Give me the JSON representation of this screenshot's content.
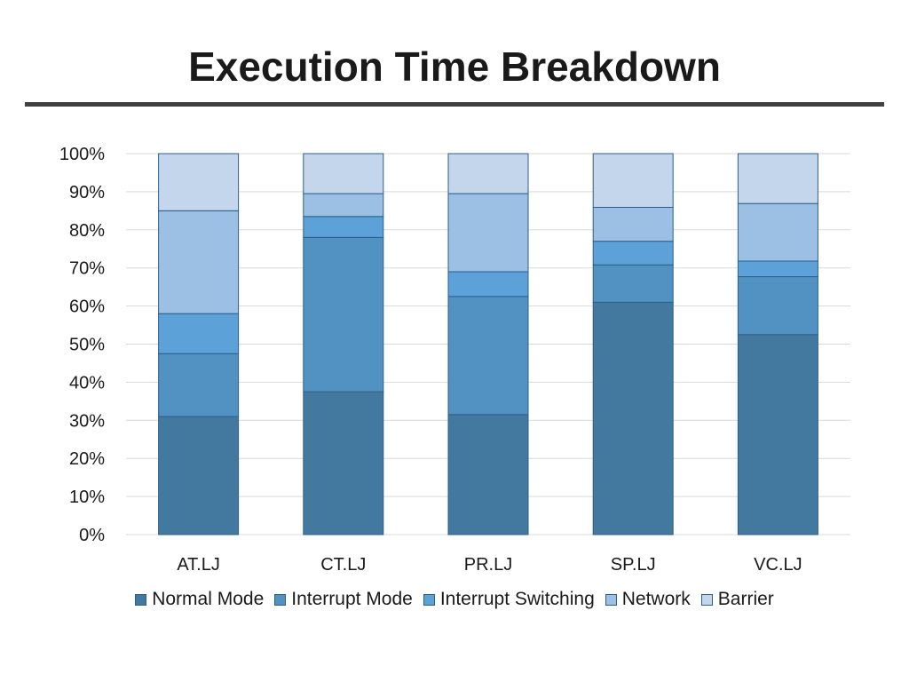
{
  "slide": {
    "title": "Execution Time Breakdown"
  },
  "chart_data": {
    "type": "bar",
    "stacked": true,
    "percent": true,
    "categories": [
      "AT.LJ",
      "CT.LJ",
      "PR.LJ",
      "SP.LJ",
      "VC.LJ"
    ],
    "series": [
      {
        "name": "Normal Mode",
        "color": "#44799f",
        "values": [
          31,
          37.5,
          31.5,
          61,
          52.5
        ]
      },
      {
        "name": "Interrupt Mode",
        "color": "#5192c3",
        "values": [
          16.5,
          40.5,
          31,
          9.8,
          15.2
        ]
      },
      {
        "name": "Interrupt Switching",
        "color": "#5ca2d9",
        "values": [
          10.5,
          5.5,
          6.5,
          6.2,
          4.1
        ]
      },
      {
        "name": "Network",
        "color": "#9bc0e4",
        "values": [
          27,
          6,
          20.5,
          8.9,
          15.1
        ]
      },
      {
        "name": "Barrier",
        "color": "#c3d6ec",
        "values": [
          15,
          10.5,
          10.5,
          14.1,
          13.1
        ]
      }
    ],
    "y_ticks": [
      "0%",
      "10%",
      "20%",
      "30%",
      "40%",
      "50%",
      "60%",
      "70%",
      "80%",
      "90%",
      "100%"
    ],
    "ylim": [
      0,
      100
    ],
    "grid": true,
    "legend_position": "bottom"
  }
}
